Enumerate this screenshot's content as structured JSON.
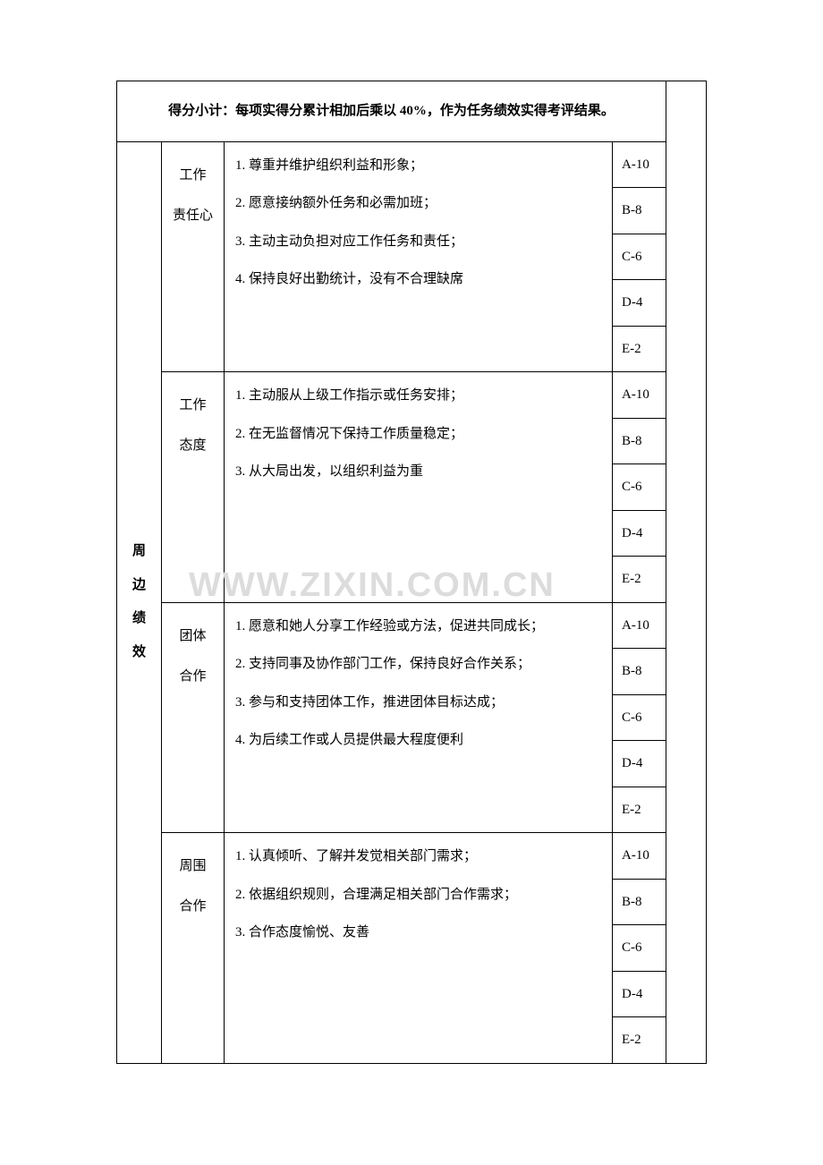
{
  "header": "得分小计：每项实得分累计相加后乘以 40%，作为任务绩效实得考评结果。",
  "leftLabel": "周\n边\n绩\n效",
  "watermark": "WWW.ZIXIN.COM.CN",
  "grades": {
    "a": "A-10",
    "b": "B-8",
    "c": "C-6",
    "d": "D-4",
    "e": "E-2"
  },
  "sections": [
    {
      "catLine1": "工作",
      "catLine2": "责任心",
      "items": [
        "1.  尊重并维护组织利益和形象；",
        "2.  愿意接纳额外任务和必需加班；",
        "3.  主动主动负担对应工作任务和责任；",
        "4.  保持良好出勤统计，没有不合理缺席"
      ]
    },
    {
      "catLine1": "工作",
      "catLine2": "态度",
      "items": [
        "1.  主动服从上级工作指示或任务安排；",
        "2.  在无监督情况下保持工作质量稳定；",
        "3.  从大局出发，以组织利益为重"
      ]
    },
    {
      "catLine1": "团体",
      "catLine2": "合作",
      "items": [
        "1.  愿意和她人分享工作经验或方法，促进共同成长；",
        "2.  支持同事及协作部门工作，保持良好合作关系；",
        "3.  参与和支持团体工作，推进团体目标达成；",
        "4.  为后续工作或人员提供最大程度便利"
      ]
    },
    {
      "catLine1": "周围",
      "catLine2": "合作",
      "items": [
        "1.  认真倾听、了解并发觉相关部门需求；",
        "2.  依据组织规则，合理满足相关部门合作需求；",
        "3.  合作态度愉悦、友善"
      ]
    }
  ],
  "colors": {
    "background": "#ffffff",
    "text": "#000000",
    "border": "#000000",
    "watermark": "#dcdcdc"
  }
}
